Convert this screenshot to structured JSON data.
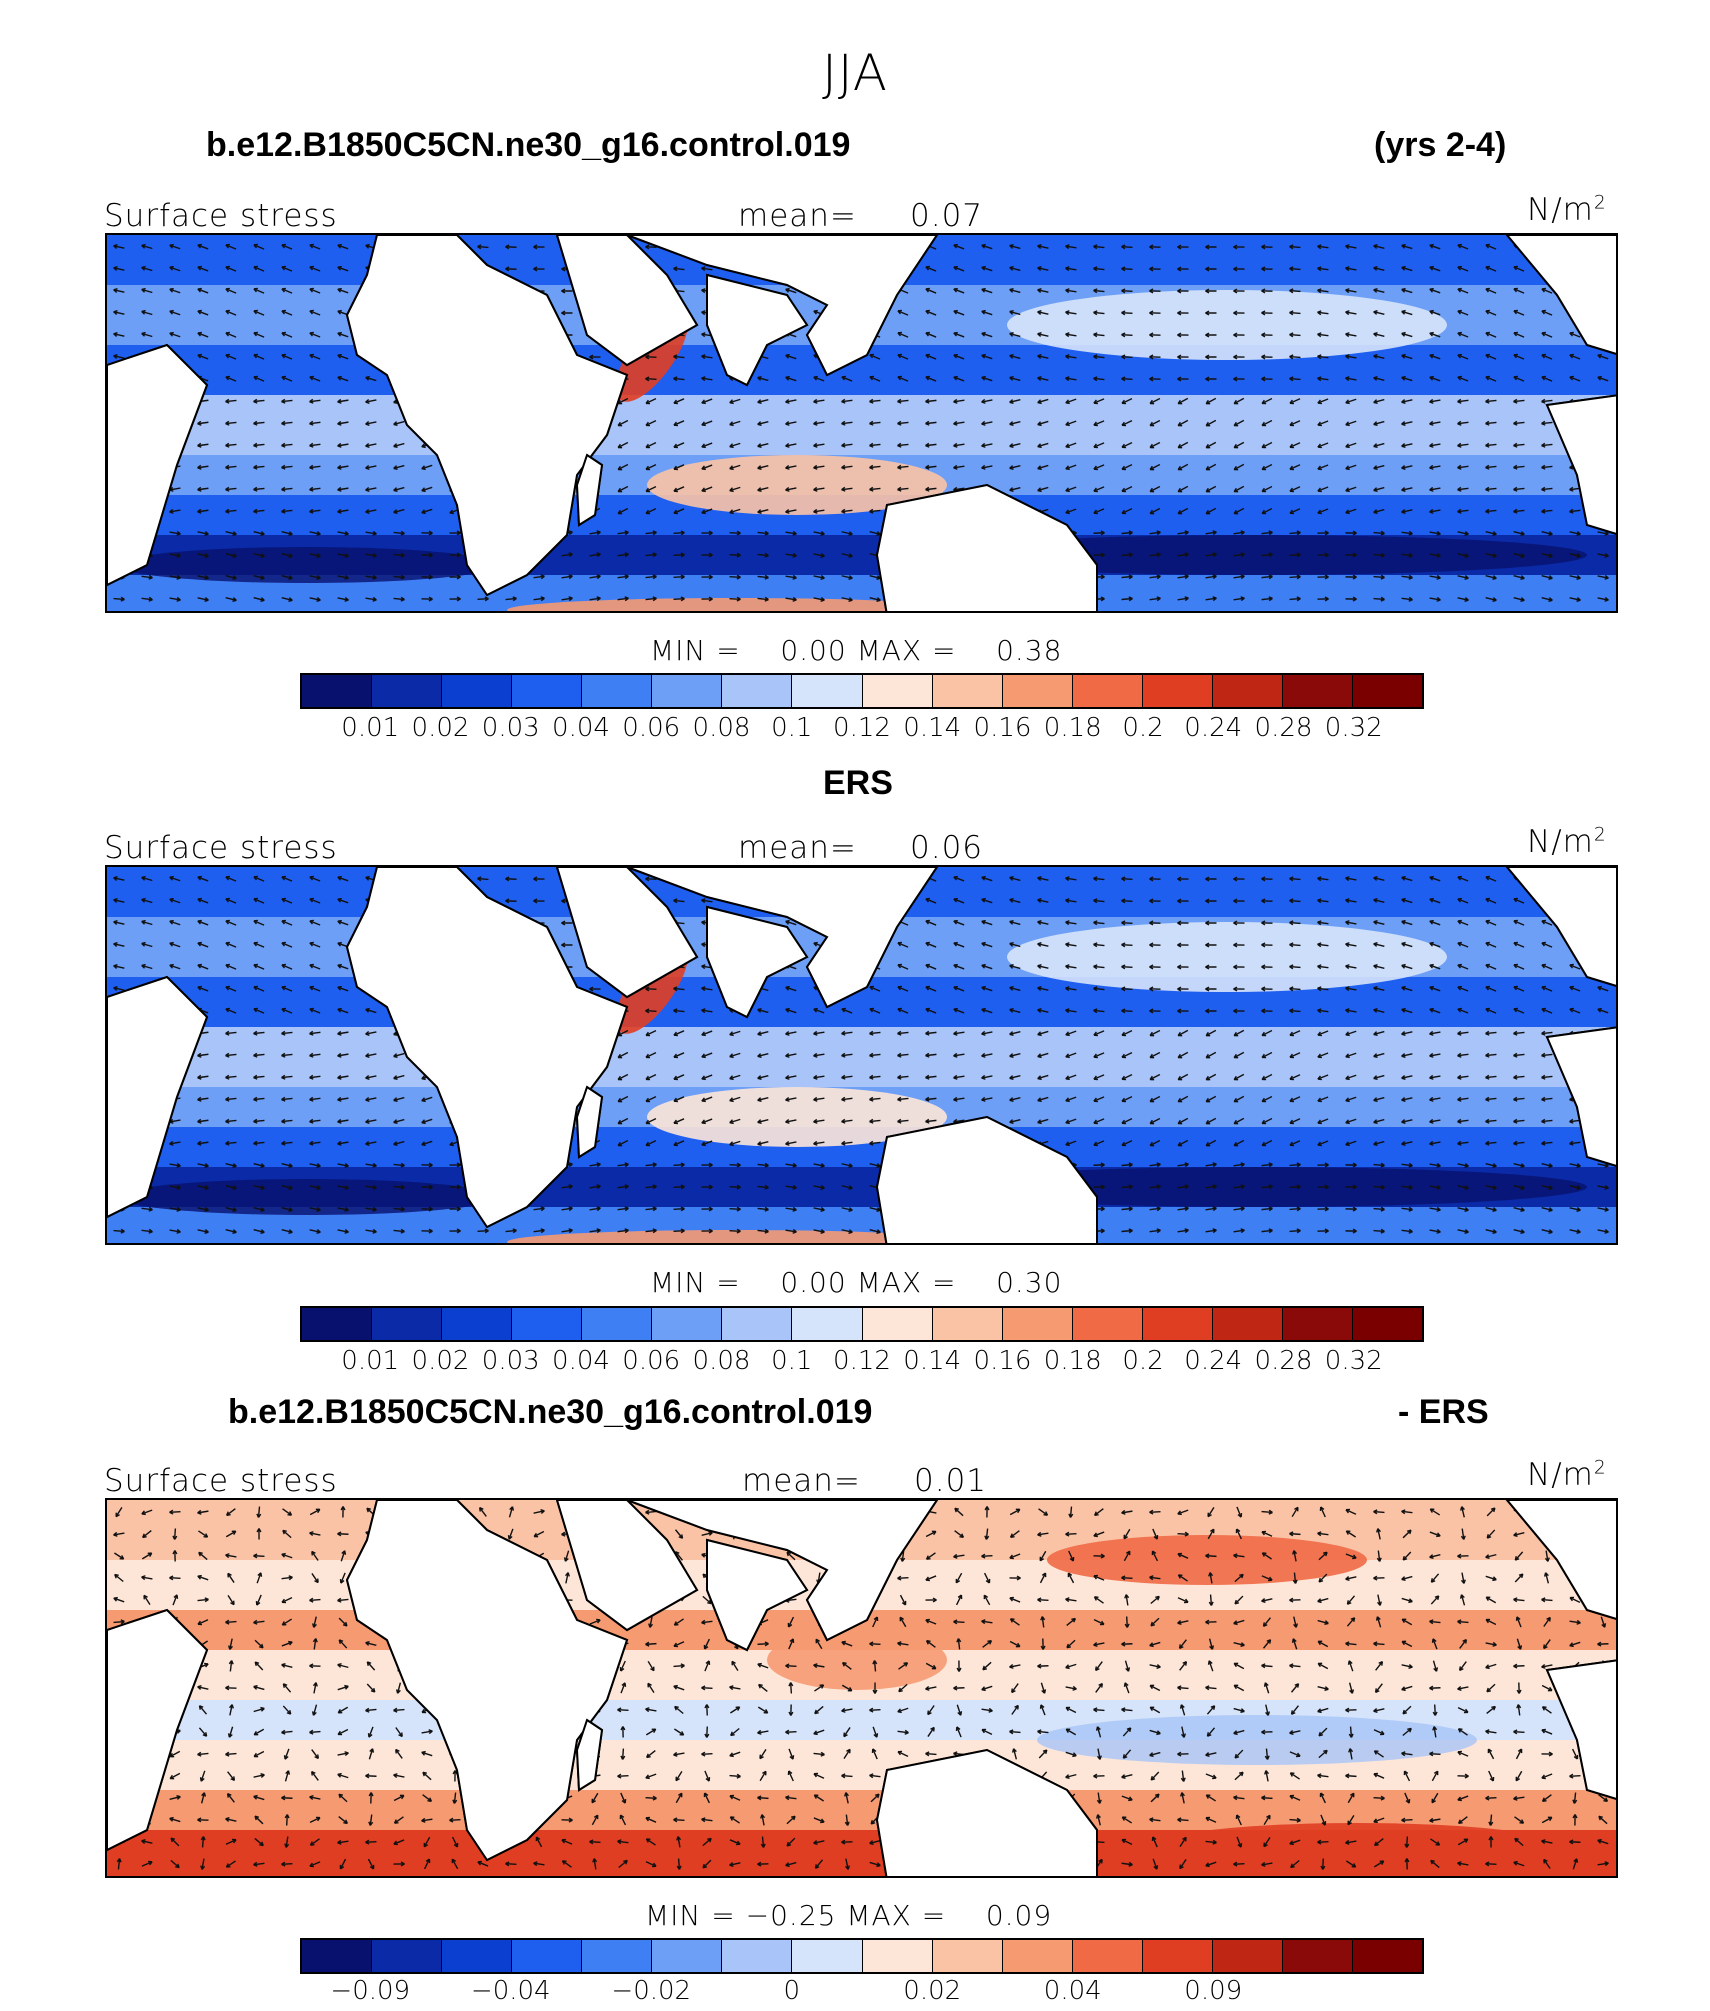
{
  "main_title": "JJA",
  "colors": {
    "land": "#ffffff",
    "coast": "#000000",
    "arrow": "#111111"
  },
  "panels": [
    {
      "left_title": "b.e12.B1850C5CN.ne30_g16.control.019",
      "right_title": "(yrs 2-4)",
      "variable": "Surface stress",
      "mean_label": "mean=",
      "mean_value": "0.07",
      "units": "N/m",
      "units_sup": "2",
      "min_label": "MIN =",
      "min_value": "0.00",
      "max_label": "MAX =",
      "max_value": "0.38",
      "colorbar_ticks": [
        "0.01",
        "0.02",
        "0.03",
        "0.04",
        "0.06",
        "0.08",
        "0.1",
        "0.12",
        "0.14",
        "0.16",
        "0.18",
        "0.2",
        "0.24",
        "0.28",
        "0.32"
      ],
      "field": "model"
    },
    {
      "left_title": "ERS",
      "right_title": "",
      "variable": "Surface stress",
      "mean_label": "mean=",
      "mean_value": "0.06",
      "units": "N/m",
      "units_sup": "2",
      "min_label": "MIN =",
      "min_value": "0.00",
      "max_label": "MAX =",
      "max_value": "0.30",
      "colorbar_ticks": [
        "0.01",
        "0.02",
        "0.03",
        "0.04",
        "0.06",
        "0.08",
        "0.1",
        "0.12",
        "0.14",
        "0.16",
        "0.18",
        "0.2",
        "0.24",
        "0.28",
        "0.32"
      ],
      "field": "obs"
    },
    {
      "left_title": "b.e12.B1850C5CN.ne30_g16.control.019",
      "right_title": "- ERS",
      "variable": "Surface stress",
      "mean_label": "mean=",
      "mean_value": "0.01",
      "units": "N/m",
      "units_sup": "2",
      "min_label": "MIN =",
      "min_value": "−0.25",
      "max_label": "MAX =",
      "max_value": "0.09",
      "colorbar_ticks": [
        "−0.09",
        "",
        "−0.04",
        "",
        "−0.02",
        "",
        "0",
        "",
        "0.02",
        "",
        "0.04",
        "",
        "0.09",
        ""
      ],
      "field": "diff"
    }
  ],
  "colorbar_colors": [
    "#08126e",
    "#0a2aa8",
    "#0b3fd0",
    "#1f5ff0",
    "#3f7ff4",
    "#6e9ff6",
    "#a8c4f8",
    "#d6e4fb",
    "#fde6d8",
    "#fbc3a6",
    "#f69a72",
    "#f06a46",
    "#e03e22",
    "#c02614",
    "#8a0a0a",
    "#7a0000"
  ],
  "diff_colorbar_colors": [
    "#08126e",
    "#0a2aa8",
    "#0b3fd0",
    "#1f5ff0",
    "#3f7ff4",
    "#6e9ff6",
    "#a8c4f8",
    "#d6e4fb",
    "#fde6d8",
    "#fbc3a6",
    "#f69a72",
    "#f06a46",
    "#e03e22",
    "#c02614",
    "#8a0a0a",
    "#7a0000"
  ]
}
